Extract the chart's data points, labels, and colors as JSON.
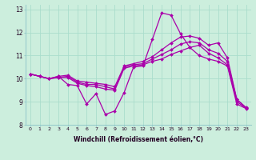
{
  "xlabel": "Windchill (Refroidissement éolien,°C)",
  "background_color": "#cceedd",
  "line_color": "#aa00aa",
  "xlim": [
    -0.5,
    23.5
  ],
  "ylim": [
    8,
    13.2
  ],
  "xticks": [
    0,
    1,
    2,
    3,
    4,
    5,
    6,
    7,
    8,
    9,
    10,
    11,
    12,
    13,
    14,
    15,
    16,
    17,
    18,
    19,
    20,
    21,
    22,
    23
  ],
  "yticks": [
    8,
    9,
    10,
    11,
    12,
    13
  ],
  "grid_color": "#aaddcc",
  "series": [
    [
      10.2,
      10.1,
      10.0,
      10.1,
      9.75,
      9.7,
      8.9,
      9.35,
      8.45,
      8.6,
      9.4,
      10.5,
      10.55,
      11.7,
      12.85,
      12.75,
      11.95,
      11.35,
      11.0,
      10.85,
      10.75,
      10.55,
      8.9,
      8.7
    ],
    [
      10.2,
      10.1,
      10.0,
      10.05,
      10.05,
      9.8,
      9.7,
      9.65,
      9.55,
      9.5,
      10.45,
      10.55,
      10.6,
      10.75,
      10.85,
      11.05,
      11.2,
      11.35,
      11.45,
      11.1,
      10.9,
      10.6,
      9.0,
      8.72
    ],
    [
      10.2,
      10.1,
      10.0,
      10.05,
      10.1,
      9.85,
      9.75,
      9.75,
      9.65,
      9.55,
      10.5,
      10.6,
      10.65,
      10.85,
      11.05,
      11.25,
      11.5,
      11.6,
      11.55,
      11.25,
      11.1,
      10.75,
      9.1,
      8.72
    ],
    [
      10.2,
      10.1,
      10.0,
      10.1,
      10.15,
      9.9,
      9.85,
      9.8,
      9.75,
      9.65,
      10.55,
      10.65,
      10.75,
      10.95,
      11.25,
      11.55,
      11.8,
      11.85,
      11.75,
      11.45,
      11.55,
      10.9,
      9.1,
      8.75
    ]
  ]
}
